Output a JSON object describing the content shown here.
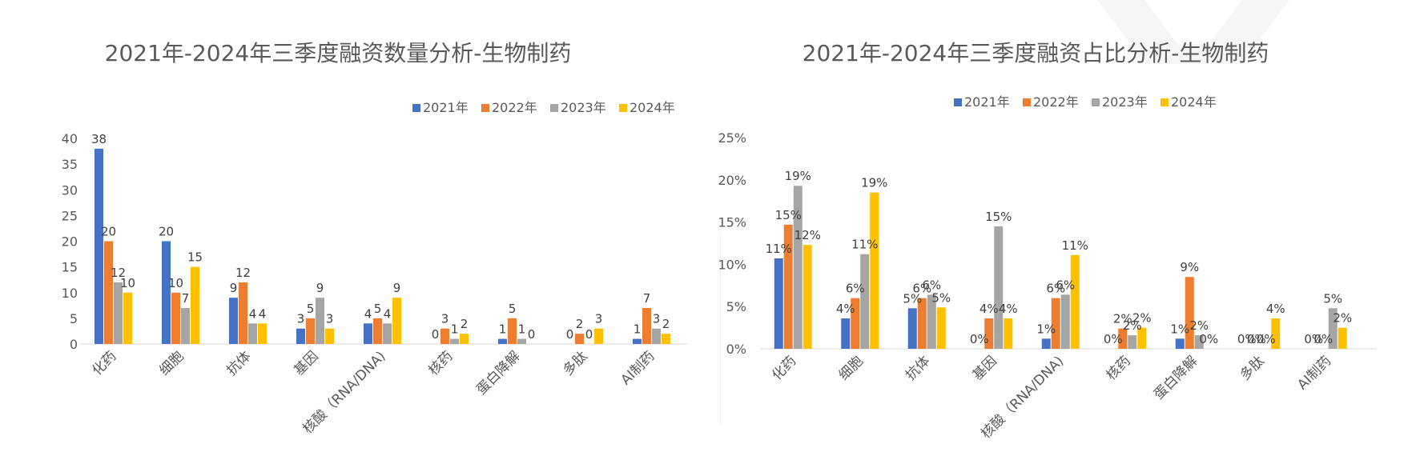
{
  "colors": {
    "2021年": "#4472c4",
    "2022年": "#ed7d31",
    "2023年": "#a5a5a5",
    "2024年": "#ffc000"
  },
  "chart_data": [
    {
      "type": "bar",
      "title": "2021年-2024年三季度融资数量分析-生物制药",
      "categories": [
        "化药",
        "细胞",
        "抗体",
        "基因",
        "核酸（RNA/DNA)",
        "核药",
        "蛋白降解",
        "多肽",
        "AI制药"
      ],
      "series": [
        {
          "name": "2021年",
          "values": [
            38,
            20,
            9,
            3,
            4,
            0,
            1,
            0,
            1
          ]
        },
        {
          "name": "2022年",
          "values": [
            20,
            10,
            12,
            5,
            5,
            3,
            5,
            2,
            7
          ]
        },
        {
          "name": "2023年",
          "values": [
            12,
            7,
            4,
            9,
            4,
            1,
            1,
            0,
            3
          ]
        },
        {
          "name": "2024年",
          "values": [
            10,
            15,
            4,
            3,
            9,
            2,
            0,
            3,
            2
          ]
        }
      ],
      "yticks": [
        "0",
        "5",
        "10",
        "15",
        "20",
        "25",
        "30",
        "35",
        "40"
      ],
      "ylim": [
        0,
        40
      ],
      "legend": "top-right",
      "grid": false
    },
    {
      "type": "bar",
      "title": "2021年-2024年三季度融资占比分析-生物制药",
      "categories": [
        "化药",
        "细胞",
        "抗体",
        "基因",
        "核酸（RNA/DNA)",
        "核药",
        "蛋白降解",
        "多肽",
        "AI制药"
      ],
      "series": [
        {
          "name": "2021年",
          "values": [
            10.7,
            3.6,
            4.8,
            0,
            1.2,
            0,
            1.2,
            0,
            0
          ],
          "labels": [
            "11%",
            "4%",
            "5%",
            "0%",
            "1%",
            "0%",
            "1%",
            "0%",
            "0%"
          ]
        },
        {
          "name": "2022年",
          "values": [
            14.7,
            6.0,
            6.0,
            3.6,
            6.0,
            2.4,
            8.5,
            0,
            0
          ],
          "labels": [
            "15%",
            "6%",
            "6%",
            "4%",
            "6%",
            "2%",
            "9%",
            "0%",
            "0%"
          ]
        },
        {
          "name": "2023年",
          "values": [
            19.3,
            11.2,
            6.4,
            14.5,
            6.4,
            1.6,
            1.6,
            0,
            4.8
          ],
          "labels": [
            "19%",
            "11%",
            "6%",
            "15%",
            "6%",
            "2%",
            "2%",
            "0%",
            "5%"
          ]
        },
        {
          "name": "2024年",
          "values": [
            12.3,
            18.5,
            4.9,
            3.6,
            11.1,
            2.5,
            0,
            3.6,
            2.5
          ],
          "labels": [
            "12%",
            "19%",
            "5%",
            "4%",
            "11%",
            "2%",
            "0%",
            "4%",
            "2%"
          ]
        }
      ],
      "yticks": [
        "0%",
        "5%",
        "10%",
        "15%",
        "20%",
        "25%"
      ],
      "ylim": [
        0,
        25
      ],
      "legend": "top-right",
      "grid": false
    }
  ]
}
